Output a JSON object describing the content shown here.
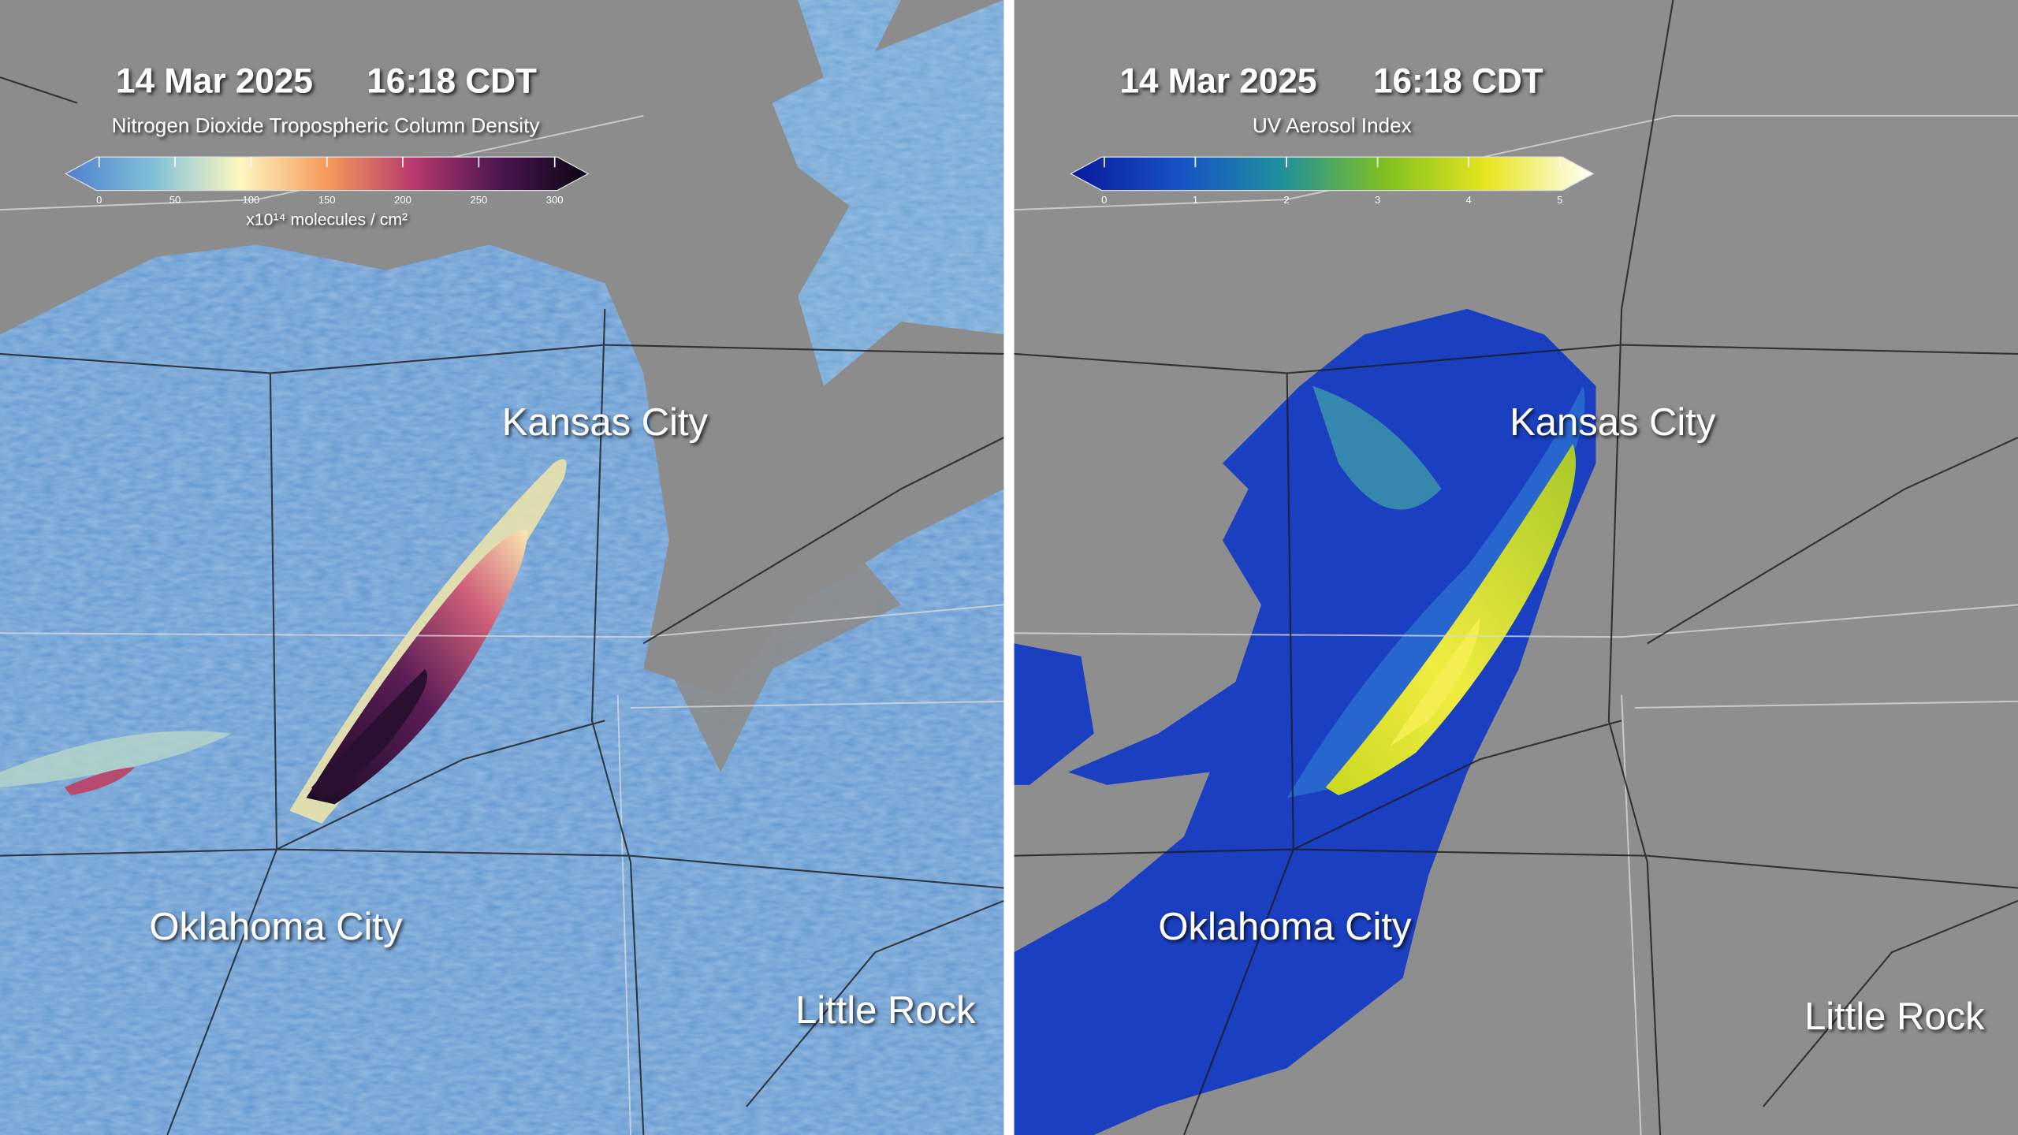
{
  "panels": [
    {
      "date": "14 Mar 2025",
      "time": "16:18 CDT",
      "title": "Nitrogen Dioxide Tropospheric Column Density",
      "colorbar": {
        "ticks": [
          0,
          50,
          100,
          150,
          200,
          250,
          300
        ],
        "unit": "x10¹⁴ molecules / cm²",
        "colors": [
          "#4f7fcf",
          "#7fc0d8",
          "#fdf7c0",
          "#f59a5a",
          "#b83a6e",
          "#4a1550",
          "#0a0612"
        ]
      },
      "cities": [
        "Kansas City",
        "Oklahoma City",
        "Little Rock"
      ]
    },
    {
      "date": "14 Mar 2025",
      "time": "16:18 CDT",
      "title": "UV Aerosol Index",
      "colorbar": {
        "ticks": [
          0,
          1,
          2,
          3,
          4,
          5
        ],
        "colors": [
          "#0a1a9a",
          "#1650c8",
          "#1f8fa0",
          "#7fbf20",
          "#e8e620",
          "#ffffff"
        ]
      },
      "cities": [
        "Kansas City",
        "Oklahoma City",
        "Little Rock"
      ]
    }
  ]
}
